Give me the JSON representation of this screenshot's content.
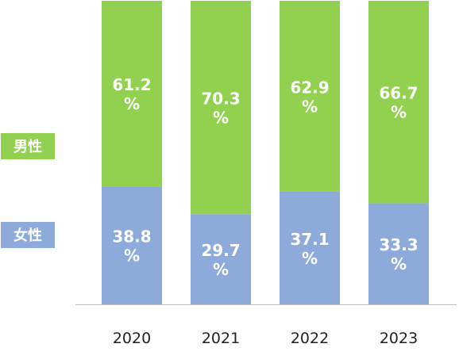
{
  "chart_data": {
    "type": "bar",
    "stacked": true,
    "percent": true,
    "categories": [
      "2020",
      "2021",
      "2022",
      "2023"
    ],
    "series": [
      {
        "name": "女性",
        "color": "#8eaadb",
        "values": [
          38.8,
          29.7,
          37.1,
          33.3
        ],
        "labels": [
          "38.8\n%",
          "29.7\n%",
          "37.1\n%",
          "33.3\n%"
        ]
      },
      {
        "name": "男性",
        "color": "#92d050",
        "values": [
          61.2,
          70.3,
          62.9,
          66.7
        ],
        "labels": [
          "61.2\n%",
          "70.3\n%",
          "62.9\n%",
          "66.7\n%"
        ]
      }
    ],
    "ylim": [
      0,
      100
    ],
    "grid": false,
    "legend": "left",
    "axis_color": "#bfbfbf"
  }
}
